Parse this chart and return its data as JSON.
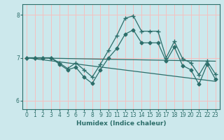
{
  "xlabel": "Humidex (Indice chaleur)",
  "ylabel": "",
  "xlim": [
    -0.5,
    23.5
  ],
  "ylim": [
    5.8,
    8.25
  ],
  "yticks": [
    6,
    7,
    8
  ],
  "xticks": [
    0,
    1,
    2,
    3,
    4,
    5,
    6,
    7,
    8,
    9,
    10,
    11,
    12,
    13,
    14,
    15,
    16,
    17,
    18,
    19,
    20,
    21,
    22,
    23
  ],
  "bg_color": "#cce8ec",
  "line_color": "#2d6e6a",
  "grid_color": "#f5c0c0",
  "lines": [
    {
      "x": [
        0,
        1,
        2,
        3,
        4,
        5,
        6,
        7,
        8,
        9,
        10,
        11,
        12,
        13,
        14,
        15,
        16,
        17,
        18,
        19,
        20,
        21,
        22,
        23
      ],
      "y": [
        7.0,
        7.0,
        7.0,
        7.0,
        6.88,
        6.75,
        6.88,
        6.72,
        6.55,
        6.85,
        7.18,
        7.52,
        7.92,
        7.98,
        7.62,
        7.62,
        7.62,
        7.0,
        7.38,
        6.98,
        6.88,
        6.6,
        6.92,
        6.62
      ],
      "marker": "+",
      "markersize": 4,
      "lw": 0.9
    },
    {
      "x": [
        0,
        1,
        2,
        3,
        4,
        5,
        6,
        7,
        8,
        9,
        10,
        11,
        12,
        13,
        14,
        15,
        16,
        17,
        18,
        19,
        20,
        21,
        22,
        23
      ],
      "y": [
        7.0,
        7.0,
        7.0,
        7.0,
        6.85,
        6.72,
        6.78,
        6.55,
        6.4,
        6.72,
        7.0,
        7.22,
        7.55,
        7.65,
        7.35,
        7.35,
        7.35,
        6.92,
        7.25,
        6.82,
        6.72,
        6.38,
        6.85,
        6.5
      ],
      "marker": "D",
      "markersize": 2.5,
      "lw": 0.9
    },
    {
      "x": [
        0,
        23
      ],
      "y": [
        7.0,
        6.92
      ],
      "marker": null,
      "markersize": 0,
      "lw": 0.9
    },
    {
      "x": [
        0,
        23
      ],
      "y": [
        7.0,
        6.45
      ],
      "marker": null,
      "markersize": 0,
      "lw": 0.9
    }
  ]
}
